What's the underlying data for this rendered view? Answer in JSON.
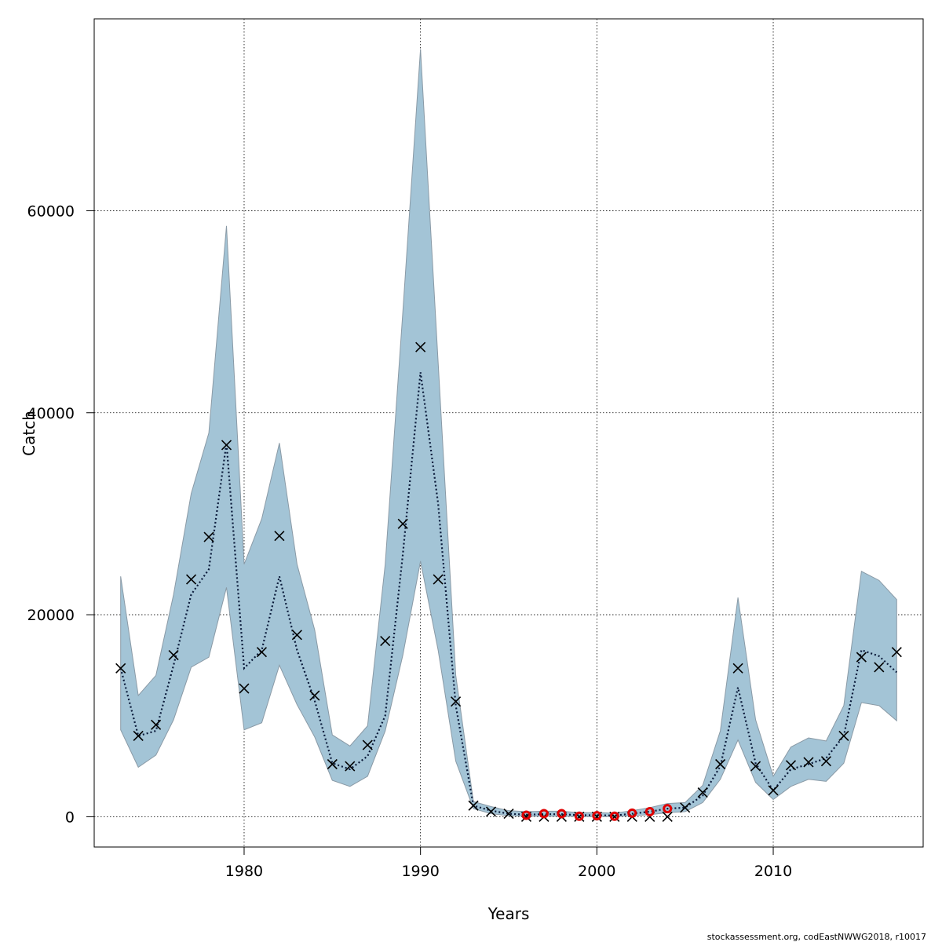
{
  "chart_data": {
    "type": "line",
    "title": "",
    "xlabel": "Years",
    "ylabel": "Catch",
    "xlim": [
      1971.5,
      2018.5
    ],
    "ylim": [
      -3000,
      79000
    ],
    "xticks": [
      1980,
      1990,
      2000,
      2010
    ],
    "yticks": [
      0,
      20000,
      40000,
      60000
    ],
    "grid": true,
    "colors": {
      "band": "#a3c4d6",
      "band_edge": "#8a9aa6",
      "line": "#0a1a3a",
      "observed": "#000000",
      "highlight": "#e00000"
    },
    "x": [
      1973,
      1974,
      1975,
      1976,
      1977,
      1978,
      1979,
      1980,
      1981,
      1982,
      1983,
      1984,
      1985,
      1986,
      1987,
      1988,
      1989,
      1990,
      1991,
      1992,
      1993,
      1994,
      1995,
      1996,
      1997,
      1998,
      1999,
      2000,
      2001,
      2002,
      2003,
      2004,
      2005,
      2006,
      2007,
      2008,
      2009,
      2010,
      2011,
      2012,
      2013,
      2014,
      2015,
      2016,
      2017
    ],
    "series": [
      {
        "values": [
          14700,
          8000,
          8500,
          15000,
          22000,
          24500,
          37000,
          14700,
          16500,
          23800,
          16500,
          11500,
          5300,
          4700,
          6000,
          10000,
          26000,
          44000,
          31000,
          11000,
          1100,
          600,
          300,
          200,
          250,
          250,
          150,
          150,
          120,
          300,
          500,
          800,
          900,
          2100,
          5000,
          12800,
          5300,
          2600,
          4700,
          5200,
          5800,
          8000,
          16500,
          15900,
          14300
        ]
      },
      {
        "values": [
          23800,
          12000,
          14000,
          22000,
          32000,
          38000,
          58500,
          25000,
          29500,
          37000,
          25000,
          18500,
          8100,
          7000,
          9000,
          25000,
          50000,
          76000,
          45000,
          14000,
          1500,
          1000,
          600,
          500,
          550,
          550,
          400,
          400,
          350,
          600,
          900,
          1300,
          1400,
          3100,
          8500,
          21700,
          9600,
          4000,
          6900,
          7800,
          7500,
          11000,
          24300,
          23400,
          21500
        ]
      },
      {
        "values": [
          8600,
          4900,
          6100,
          9600,
          14800,
          15800,
          22700,
          8600,
          9300,
          15000,
          11100,
          7900,
          3600,
          3000,
          4000,
          8500,
          16000,
          25300,
          16500,
          5500,
          800,
          300,
          100,
          50,
          50,
          50,
          20,
          20,
          20,
          100,
          200,
          400,
          500,
          1400,
          3700,
          7600,
          3400,
          1700,
          3000,
          3700,
          3500,
          5300,
          11300,
          11000,
          9500
        ]
      },
      {
        "values": [
          14700,
          8000,
          9100,
          16000,
          23500,
          27700,
          36800,
          12700,
          16300,
          27800,
          18000,
          12000,
          5200,
          5000,
          7100,
          17400,
          29000,
          46500,
          23500,
          11400,
          1100,
          500,
          300,
          0,
          0,
          0,
          0,
          0,
          0,
          0,
          0,
          0,
          900,
          2400,
          5200,
          14700,
          5000,
          2600,
          5100,
          5400,
          5500,
          8000,
          15800,
          14800,
          16300
        ]
      },
      {
        "x": [
          1996,
          1997,
          1998,
          1999,
          2000,
          2001,
          2002,
          2003,
          2004
        ],
        "values": [
          150,
          300,
          300,
          50,
          100,
          50,
          350,
          500,
          800
        ]
      }
    ]
  },
  "footer": "stockassessment.org, codEastNWWG2018, r10017"
}
